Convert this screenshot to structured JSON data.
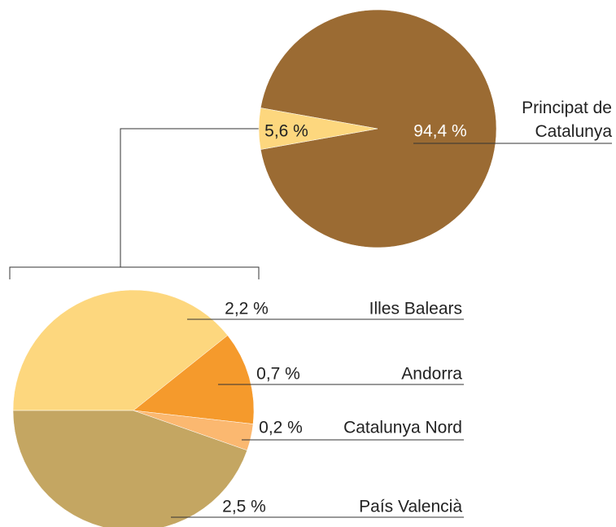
{
  "chart_data": [
    {
      "type": "pie",
      "categories": [
        "Principat de Catalunya",
        null
      ],
      "values": [
        94.4,
        5.6
      ],
      "value_labels": [
        "94,4 %",
        "5,6 %"
      ],
      "colors": [
        "#9b6b33",
        "#fdd77e"
      ]
    },
    {
      "type": "pie",
      "categories": [
        "Illes Balears",
        "Andorra",
        "Catalunya Nord",
        "País Valencià"
      ],
      "values": [
        2.2,
        0.7,
        0.2,
        2.5
      ],
      "value_labels": [
        "2,2 %",
        "0,7 %",
        "0,2 %",
        "2,5 %"
      ],
      "colors": [
        "#fdd77e",
        "#f59a2c",
        "#fbb870",
        "#c4a662"
      ]
    }
  ]
}
